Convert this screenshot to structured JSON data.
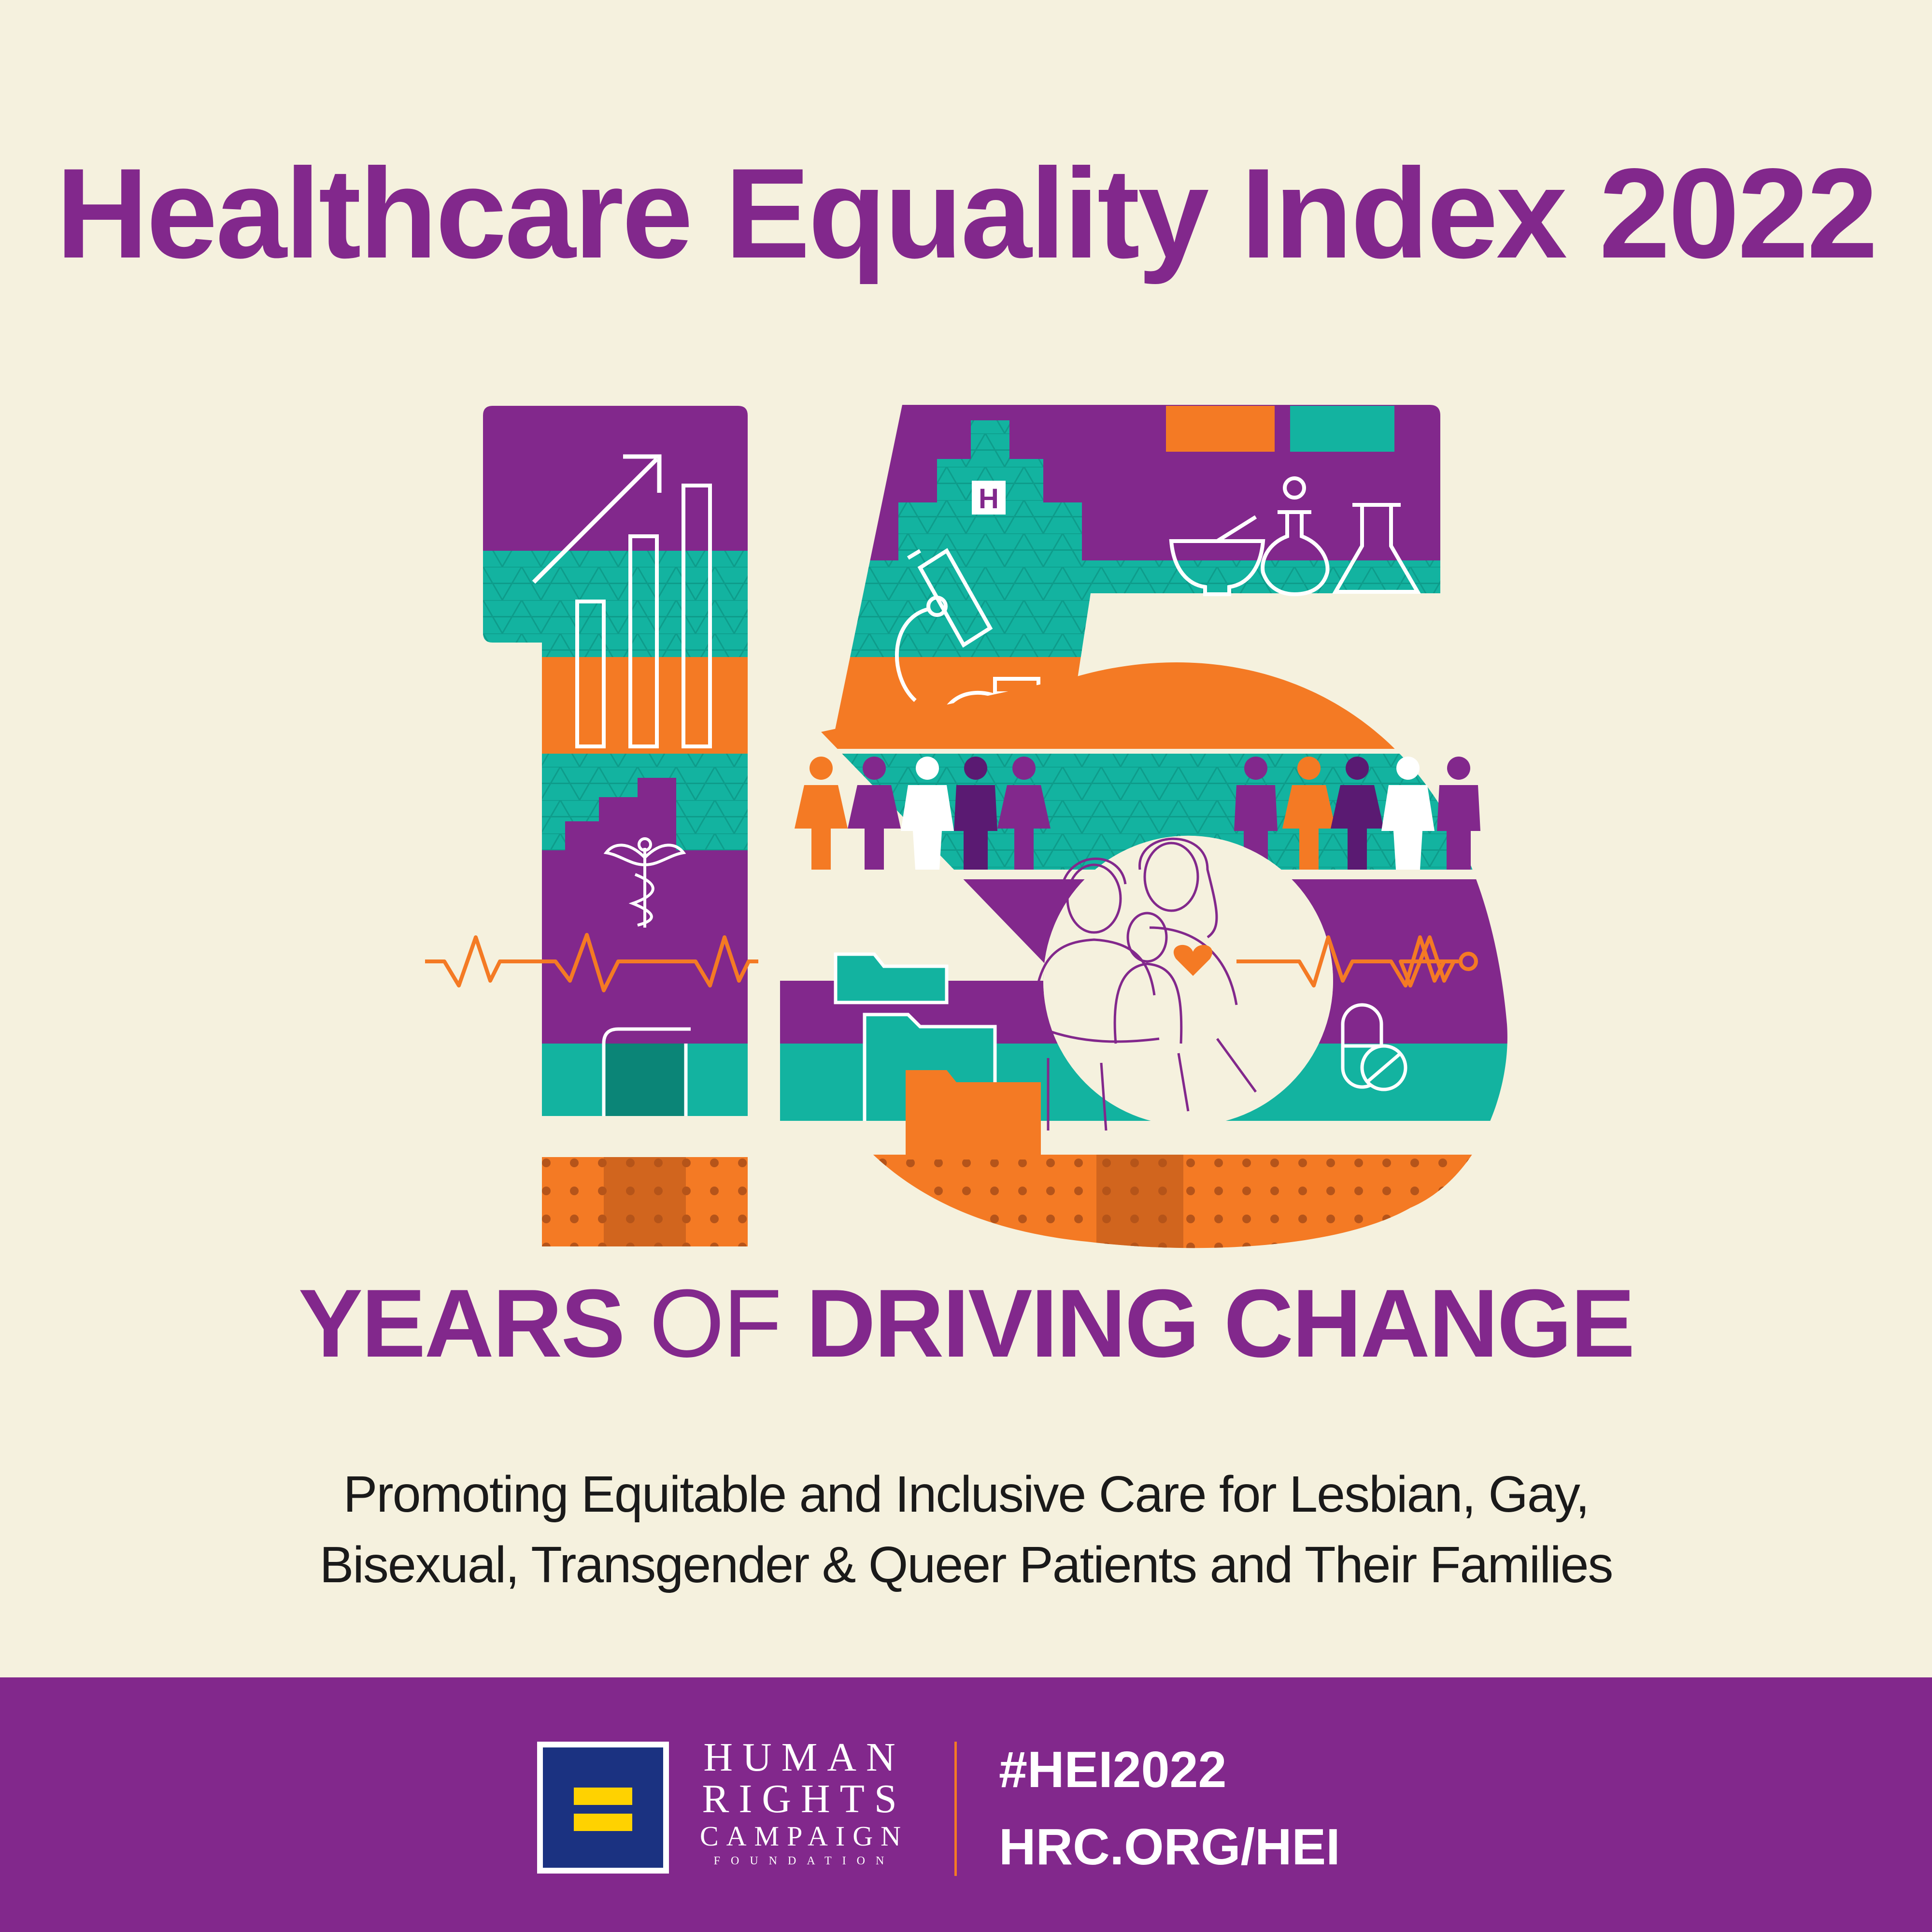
{
  "header": {
    "title": "Healthcare Equality Index 2022"
  },
  "tagline": {
    "part1": "YEARS",
    "part2": "OF",
    "part3": "DRIVING CHANGE"
  },
  "subtitle": {
    "line1": "Promoting Equitable and Inclusive Care for Lesbian, Gay,",
    "line2": "Bisexual, Transgender & Queer Patients and Their Families"
  },
  "footer": {
    "org_line1": "HUMAN",
    "org_line2": "RIGHTS",
    "org_line3": "CAMPAIGN",
    "org_line4": "FOUNDATION",
    "hashtag": "#HEI2022",
    "url": "HRC.ORG/HEI"
  },
  "artwork": {
    "numeral": "15",
    "hospital_sign": "H",
    "colors": {
      "purple": "#82288c",
      "teal": "#13b3a0",
      "orange": "#f47a24",
      "cream": "#f5f1de",
      "navy": "#1b3281",
      "yellow": "#ffd200"
    },
    "icons": [
      "trend-arrow-icon",
      "bar-chart-icon",
      "hospital-icon",
      "microscope-icon",
      "mortar-pestle-icon",
      "round-flask-icon",
      "erlenmeyer-flask-icon",
      "caduceus-icon",
      "heartbeat-line-icon",
      "book-icon",
      "folder-icon",
      "pill-icon",
      "heart-icon",
      "people-row-icon",
      "family-portrait"
    ]
  }
}
